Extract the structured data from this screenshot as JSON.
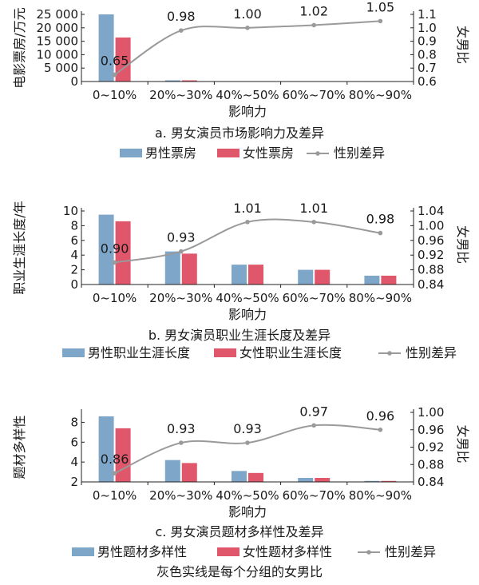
{
  "colors": {
    "male": "#7ea6c9",
    "female": "#e0566a",
    "ratio": "#9a9a9a",
    "axis": "#222222"
  },
  "footnote": "灰色实线是每个分组的女男比",
  "chart_data": [
    {
      "type": "bar",
      "caption": "a. 男女演员市场影响力及差异",
      "xlabel": "影响力",
      "ylabel": "电影票房/万元",
      "y2label": "女男比",
      "categories": [
        "0~10%",
        "20%~30%",
        "40%~50%",
        "60%~70%",
        "80%~90%"
      ],
      "ylim": [
        0,
        25000
      ],
      "yticks": [
        0,
        5000,
        10000,
        15000,
        20000,
        25000
      ],
      "ytick_labels": [
        "0",
        "5 000",
        "10 000",
        "15 000",
        "20 000",
        "25 000"
      ],
      "y2lim": [
        0.6,
        1.1
      ],
      "y2ticks": [
        0.6,
        0.7,
        0.8,
        0.9,
        1.0,
        1.1
      ],
      "y2tick_labels": [
        "0.6",
        "0.7",
        "0.8",
        "0.9",
        "1.0",
        "1.1"
      ],
      "series": [
        {
          "name": "男性票房",
          "values": [
            25000,
            450,
            120,
            50,
            20
          ]
        },
        {
          "name": "女性票房",
          "values": [
            16400,
            440,
            120,
            50,
            20
          ]
        }
      ],
      "ratio": {
        "name": "性别差异",
        "values": [
          0.65,
          0.98,
          1.0,
          1.02,
          1.05
        ],
        "labels": [
          "0.65",
          "0.98",
          "1.00",
          "1.02",
          "1.05"
        ]
      }
    },
    {
      "type": "bar",
      "caption": "b. 男女演员职业生涯长度及差异",
      "xlabel": "影响力",
      "ylabel": "职业生涯长度/年",
      "y2label": "女男比",
      "categories": [
        "0~10%",
        "20%~30%",
        "40%~50%",
        "60%~70%",
        "80%~90%"
      ],
      "ylim": [
        0,
        10
      ],
      "yticks": [
        0,
        2,
        4,
        6,
        8,
        10
      ],
      "ytick_labels": [
        "0",
        "2",
        "4",
        "6",
        "8",
        "10"
      ],
      "y2lim": [
        0.84,
        1.04
      ],
      "y2ticks": [
        0.84,
        0.88,
        0.92,
        0.96,
        1.0,
        1.04
      ],
      "y2tick_labels": [
        "0.84",
        "0.88",
        "0.92",
        "0.96",
        "1.00",
        "1.04"
      ],
      "series": [
        {
          "name": "男性职业生涯长度",
          "values": [
            9.5,
            4.5,
            2.7,
            2.0,
            1.2
          ]
        },
        {
          "name": "女性职业生涯长度",
          "values": [
            8.6,
            4.2,
            2.7,
            2.0,
            1.2
          ]
        }
      ],
      "ratio": {
        "name": "性别差异",
        "values": [
          0.9,
          0.93,
          1.01,
          1.01,
          0.98
        ],
        "labels": [
          "0.90",
          "0.93",
          "1.01",
          "1.01",
          "0.98"
        ]
      }
    },
    {
      "type": "bar",
      "caption": "c. 男女演员题材多样性及差异",
      "xlabel": "影响力",
      "ylabel": "题材多样性",
      "y2label": "女男比",
      "categories": [
        "0~10%",
        "20%~30%",
        "40%~50%",
        "60%~70%",
        "80%~90%"
      ],
      "ylim": [
        2,
        9
      ],
      "yticks": [
        2,
        4,
        6,
        8
      ],
      "ytick_labels": [
        "2",
        "4",
        "6",
        "8"
      ],
      "y2lim": [
        0.84,
        1.0
      ],
      "y2ticks": [
        0.84,
        0.88,
        0.92,
        0.96,
        1.0
      ],
      "y2tick_labels": [
        "0.84",
        "0.88",
        "0.92",
        "0.96",
        "1.00"
      ],
      "series": [
        {
          "name": "男性题材多样性",
          "values": [
            8.6,
            4.2,
            3.1,
            2.4,
            2.1
          ]
        },
        {
          "name": "女性题材多样性",
          "values": [
            7.4,
            3.9,
            2.9,
            2.4,
            2.1
          ]
        }
      ],
      "ratio": {
        "name": "性别差异",
        "values": [
          0.86,
          0.93,
          0.93,
          0.97,
          0.96
        ],
        "labels": [
          "0.86",
          "0.93",
          "0.93",
          "0.97",
          "0.96"
        ]
      }
    }
  ]
}
